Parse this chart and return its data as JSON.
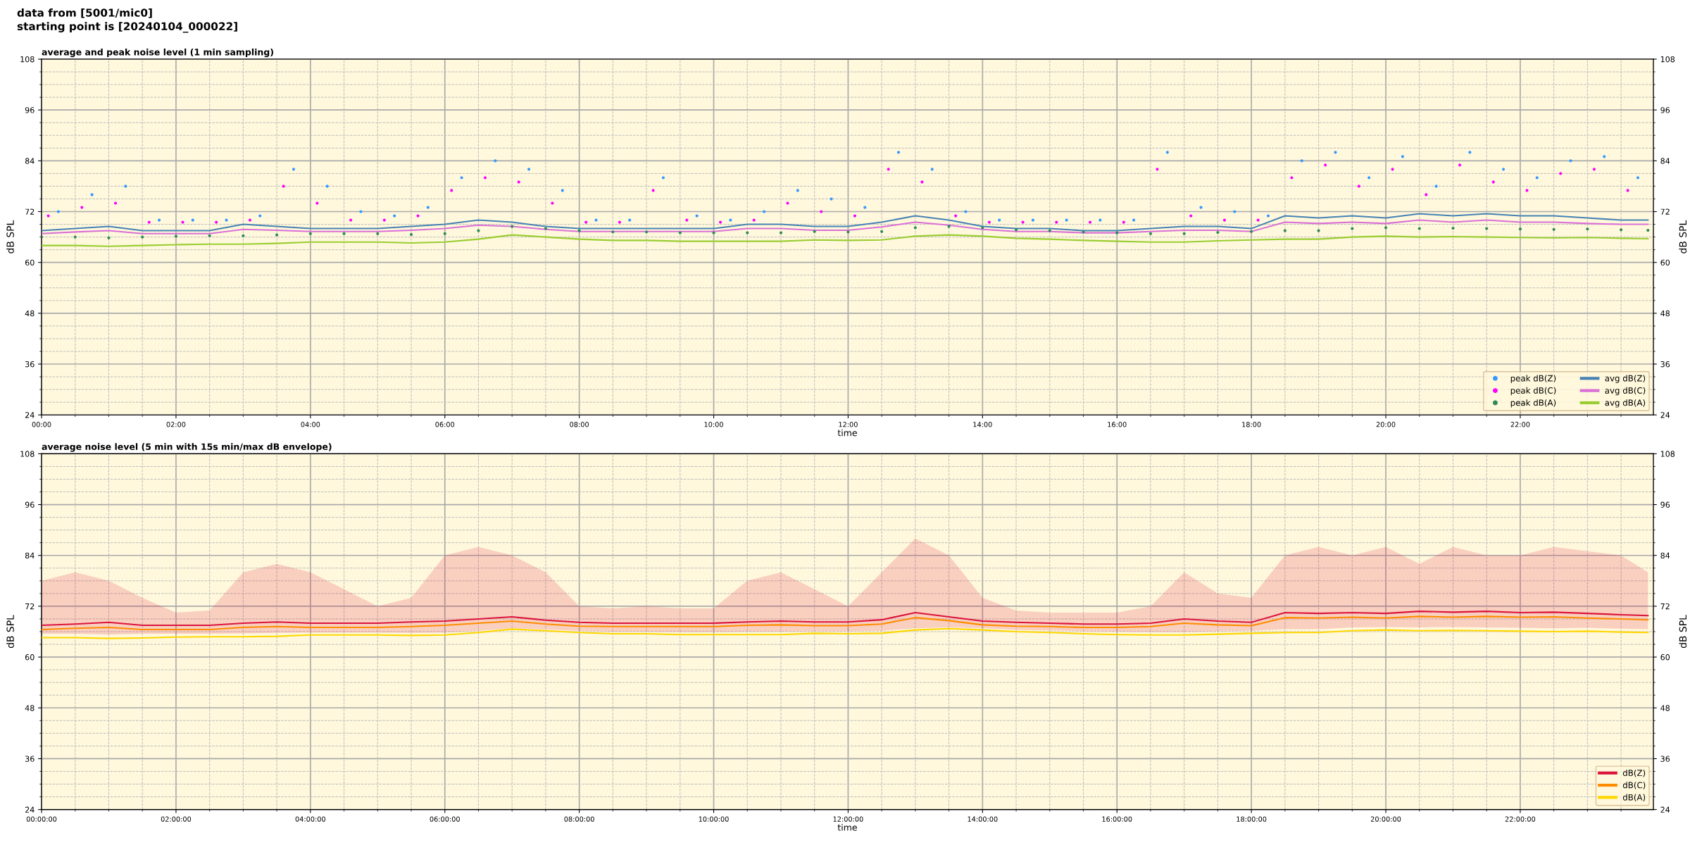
{
  "chart_data": [
    {
      "type": "line",
      "title": "average and peak noise level (1 min sampling)",
      "xlabel": "time",
      "ylabel": "dB SPL",
      "y2label": "dB SPL",
      "annotations": [
        "data from [5001/mic0]",
        "starting point is [20240104_000022]"
      ],
      "x": [
        0,
        0.5,
        1,
        1.5,
        2,
        2.5,
        3,
        3.5,
        4,
        4.5,
        5,
        5.5,
        6,
        6.5,
        7,
        7.5,
        8,
        8.5,
        9,
        9.5,
        10,
        10.5,
        11,
        11.5,
        12,
        12.5,
        13,
        13.5,
        14,
        14.5,
        15,
        15.5,
        16,
        16.5,
        17,
        17.5,
        18,
        18.5,
        19,
        19.5,
        20,
        20.5,
        21,
        21.5,
        22,
        22.5,
        23,
        23.5,
        23.9
      ],
      "series": [
        {
          "name": "peak dB(Z)",
          "type": "scatter",
          "color": "#3399ff",
          "x": [
            0.25,
            0.75,
            1.25,
            1.75,
            2.25,
            2.75,
            3.25,
            3.75,
            4.25,
            4.75,
            5.25,
            5.75,
            6.25,
            6.75,
            7.25,
            7.75,
            8.25,
            8.75,
            9.25,
            9.75,
            10.25,
            10.75,
            11.25,
            11.75,
            12.25,
            12.75,
            13.25,
            13.75,
            14.25,
            14.75,
            15.25,
            15.75,
            16.25,
            16.75,
            17.25,
            17.75,
            18.25,
            18.75,
            19.25,
            19.75,
            20.25,
            20.75,
            21.25,
            21.75,
            22.25,
            22.75,
            23.25,
            23.75
          ],
          "values": [
            72,
            76,
            78,
            70,
            70,
            70,
            71,
            82,
            78,
            72,
            71,
            73,
            80,
            84,
            82,
            77,
            70,
            70,
            80,
            71,
            70,
            72,
            77,
            75,
            73,
            86,
            82,
            72,
            70,
            70,
            70,
            70,
            70,
            86,
            73,
            72,
            71,
            84,
            86,
            80,
            85,
            78,
            86,
            82,
            80,
            84,
            85,
            80
          ]
        },
        {
          "name": "peak dB(C)",
          "type": "scatter",
          "color": "#ff00ff",
          "x": [
            0.1,
            0.6,
            1.1,
            1.6,
            2.1,
            2.6,
            3.1,
            3.6,
            4.1,
            4.6,
            5.1,
            5.6,
            6.1,
            6.6,
            7.1,
            7.6,
            8.1,
            8.6,
            9.1,
            9.6,
            10.1,
            10.6,
            11.1,
            11.6,
            12.1,
            12.6,
            13.1,
            13.6,
            14.1,
            14.6,
            15.1,
            15.6,
            16.1,
            16.6,
            17.1,
            17.6,
            18.1,
            18.6,
            19.1,
            19.6,
            20.1,
            20.6,
            21.1,
            21.6,
            22.1,
            22.6,
            23.1,
            23.6
          ],
          "values": [
            71,
            73,
            74,
            69.5,
            69.5,
            69.5,
            70,
            78,
            74,
            70,
            70,
            71,
            77,
            80,
            79,
            74,
            69.5,
            69.5,
            77,
            70,
            69.5,
            70,
            74,
            72,
            71,
            82,
            79,
            71,
            69.5,
            69.5,
            69.5,
            69.5,
            69.5,
            82,
            71,
            70,
            70,
            80,
            83,
            78,
            82,
            76,
            83,
            79,
            77,
            81,
            82,
            77
          ]
        },
        {
          "name": "peak dB(A)",
          "type": "scatter",
          "color": "#2e8b57",
          "values": [
            66,
            66,
            65.8,
            66,
            66.2,
            66.3,
            66.3,
            66.5,
            66.8,
            66.8,
            66.8,
            66.6,
            66.8,
            67.5,
            68.5,
            68,
            67.5,
            67.2,
            67.2,
            67,
            67,
            67,
            67,
            67.3,
            67.2,
            67.3,
            68.2,
            68.5,
            68.2,
            67.7,
            67.5,
            67.2,
            67,
            66.8,
            66.8,
            67.1,
            67.3,
            67.5,
            67.5,
            68,
            68.2,
            68,
            68.1,
            68,
            67.9,
            67.8,
            67.9,
            67.7,
            67.6
          ]
        },
        {
          "name": "avg dB(Z)",
          "color": "#4682b4",
          "values": [
            67.5,
            68,
            68.5,
            67.5,
            67.5,
            67.5,
            69,
            68.5,
            68,
            68,
            68,
            68.5,
            69,
            70,
            69.5,
            68.5,
            68,
            68,
            68,
            68,
            68,
            69,
            69,
            68.5,
            68.5,
            69.5,
            71,
            70,
            68.5,
            68,
            68,
            67.5,
            67.5,
            68,
            68.5,
            68.5,
            68,
            71,
            70.5,
            71,
            70.5,
            71.5,
            71,
            71.5,
            71,
            71,
            70.5,
            70,
            70
          ]
        },
        {
          "name": "avg dB(C)",
          "color": "#da70d6",
          "values": [
            66.8,
            67.2,
            67.5,
            66.8,
            66.8,
            66.8,
            67.8,
            67.6,
            67.3,
            67.3,
            67.3,
            67.6,
            68,
            68.8,
            68.5,
            67.8,
            67.3,
            67.3,
            67.3,
            67.3,
            67.3,
            68,
            68,
            67.6,
            67.6,
            68.4,
            69.5,
            68.8,
            67.8,
            67.3,
            67.3,
            67,
            67,
            67.3,
            67.6,
            67.6,
            67.3,
            69.5,
            69.2,
            69.5,
            69.2,
            70,
            69.5,
            70,
            69.5,
            69.5,
            69.2,
            69,
            69
          ]
        },
        {
          "name": "avg dB(A)",
          "color": "#9acd32",
          "values": [
            64,
            64,
            63.8,
            64,
            64.2,
            64.3,
            64.3,
            64.5,
            64.8,
            64.8,
            64.8,
            64.6,
            64.8,
            65.5,
            66.5,
            66,
            65.5,
            65.2,
            65.2,
            65,
            65,
            65,
            65,
            65.3,
            65.2,
            65.3,
            66.2,
            66.5,
            66.2,
            65.7,
            65.5,
            65.2,
            65,
            64.8,
            64.8,
            65.1,
            65.3,
            65.5,
            65.5,
            66,
            66.2,
            66,
            66.1,
            66,
            65.9,
            65.8,
            65.9,
            65.7,
            65.6
          ]
        }
      ],
      "xlim": [
        0,
        23.98
      ],
      "xticks": [
        {
          "value": 0,
          "label": "00:00"
        },
        {
          "value": 2,
          "label": "02:00"
        },
        {
          "value": 4,
          "label": "04:00"
        },
        {
          "value": 6,
          "label": "06:00"
        },
        {
          "value": 8,
          "label": "08:00"
        },
        {
          "value": 10,
          "label": "10:00"
        },
        {
          "value": 12,
          "label": "12:00"
        },
        {
          "value": 14,
          "label": "14:00"
        },
        {
          "value": 16,
          "label": "16:00"
        },
        {
          "value": 18,
          "label": "18:00"
        },
        {
          "value": 20,
          "label": "20:00"
        },
        {
          "value": 22,
          "label": "22:00"
        }
      ],
      "ylim": [
        24,
        108
      ],
      "yticks": [
        24,
        36,
        48,
        60,
        72,
        84,
        96,
        108
      ],
      "y2lim": [
        24,
        108
      ],
      "y2ticks": [
        24,
        36,
        48,
        60,
        72,
        84,
        96,
        108
      ],
      "grid": true,
      "legend": "bottom right"
    },
    {
      "type": "line",
      "title": "average noise level (5 min with 15s min/max dB envelope)",
      "xlabel": "time",
      "ylabel": "dB SPL",
      "y2label": "dB SPL",
      "x": [
        0,
        0.5,
        1,
        1.5,
        2,
        2.5,
        3,
        3.5,
        4,
        4.5,
        5,
        5.5,
        6,
        6.5,
        7,
        7.5,
        8,
        8.5,
        9,
        9.5,
        10,
        10.5,
        11,
        11.5,
        12,
        12.5,
        13,
        13.5,
        14,
        14.5,
        15,
        15.5,
        16,
        16.5,
        17,
        17.5,
        18,
        18.5,
        19,
        19.5,
        20,
        20.5,
        21,
        21.5,
        22,
        22.5,
        23,
        23.5,
        23.9
      ],
      "series": [
        {
          "name": "dB(Z)",
          "color": "#dc143c",
          "values": [
            67.5,
            67.8,
            68.2,
            67.5,
            67.5,
            67.5,
            68,
            68.3,
            68,
            68,
            68,
            68.3,
            68.5,
            69,
            69.5,
            68.7,
            68.2,
            68,
            68,
            68,
            68,
            68.3,
            68.5,
            68.3,
            68.3,
            68.8,
            70.5,
            69.5,
            68.5,
            68.2,
            68,
            67.8,
            67.8,
            68,
            69,
            68.5,
            68.2,
            70.5,
            70.3,
            70.5,
            70.3,
            70.8,
            70.6,
            70.8,
            70.5,
            70.6,
            70.3,
            70,
            69.8
          ],
          "lower": [
            65.5,
            65.5,
            65.3,
            65.5,
            65.5,
            65.5,
            65.6,
            65.7,
            65.8,
            65.8,
            65.8,
            65.7,
            65.8,
            66.2,
            66.8,
            66.5,
            66.2,
            66,
            66,
            65.9,
            65.9,
            66,
            66,
            66.1,
            66.1,
            66.2,
            66.8,
            67,
            66.8,
            66.4,
            66.3,
            66.1,
            66,
            65.9,
            65.9,
            66.1,
            66.2,
            66.6,
            66.6,
            67,
            67.1,
            67,
            67.1,
            67,
            66.9,
            66.8,
            66.9,
            66.7,
            66.6
          ],
          "upper": [
            78,
            80,
            78,
            74,
            70.5,
            71,
            80,
            82,
            80,
            76,
            72,
            74,
            84,
            86,
            84,
            80,
            72,
            71.5,
            72,
            71.5,
            71.5,
            78,
            80,
            76,
            72,
            80,
            88,
            84,
            74,
            71,
            70.5,
            70.5,
            70.5,
            72,
            80,
            75,
            74,
            84,
            86,
            84,
            86,
            82,
            86,
            84,
            84,
            86,
            85,
            84,
            80
          ]
        },
        {
          "name": "dB(C)",
          "color": "#ff8c00",
          "values": [
            66.5,
            66.8,
            67,
            66.5,
            66.5,
            66.5,
            67,
            67.2,
            67,
            67,
            67,
            67.2,
            67.5,
            68,
            68.5,
            67.8,
            67.3,
            67.2,
            67.2,
            67.2,
            67.2,
            67.5,
            67.6,
            67.4,
            67.4,
            67.8,
            69.3,
            68.6,
            67.6,
            67.3,
            67.2,
            67,
            67,
            67.2,
            68,
            67.6,
            67.4,
            69.3,
            69.2,
            69.4,
            69.2,
            69.6,
            69.4,
            69.6,
            69.4,
            69.5,
            69.2,
            69,
            68.8
          ]
        },
        {
          "name": "dB(A)",
          "color": "#ffd700",
          "values": [
            64.6,
            64.6,
            64.4,
            64.5,
            64.7,
            64.8,
            64.8,
            64.9,
            65.2,
            65.2,
            65.2,
            65.1,
            65.2,
            65.8,
            66.6,
            66.2,
            65.8,
            65.5,
            65.5,
            65.3,
            65.3,
            65.3,
            65.3,
            65.6,
            65.5,
            65.6,
            66.4,
            66.7,
            66.4,
            66,
            65.8,
            65.5,
            65.3,
            65.2,
            65.2,
            65.4,
            65.6,
            65.8,
            65.8,
            66.2,
            66.4,
            66.2,
            66.3,
            66.2,
            66.1,
            66,
            66.1,
            65.9,
            65.8
          ]
        }
      ],
      "xlim": [
        0,
        23.98
      ],
      "xticks": [
        {
          "value": 0,
          "label": "00:00:00"
        },
        {
          "value": 2,
          "label": "02:00:00"
        },
        {
          "value": 4,
          "label": "04:00:00"
        },
        {
          "value": 6,
          "label": "06:00:00"
        },
        {
          "value": 8,
          "label": "08:00:00"
        },
        {
          "value": 10,
          "label": "10:00:00"
        },
        {
          "value": 12,
          "label": "12:00:00"
        },
        {
          "value": 14,
          "label": "14:00:00"
        },
        {
          "value": 16,
          "label": "16:00:00"
        },
        {
          "value": 18,
          "label": "18:00:00"
        },
        {
          "value": 20,
          "label": "20:00:00"
        },
        {
          "value": 22,
          "label": "22:00:00"
        }
      ],
      "ylim": [
        24,
        108
      ],
      "yticks": [
        24,
        36,
        48,
        60,
        72,
        84,
        96,
        108
      ],
      "y2lim": [
        24,
        108
      ],
      "y2ticks": [
        24,
        36,
        48,
        60,
        72,
        84,
        96,
        108
      ],
      "grid": true,
      "legend": "bottom right"
    }
  ]
}
